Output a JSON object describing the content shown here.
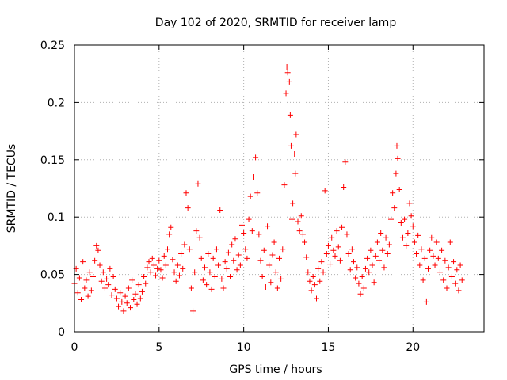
{
  "chart_data": {
    "type": "scatter",
    "title": "Day 102 of 2020, SRMTID for receiver lamp",
    "xlabel": "GPS time / hours",
    "ylabel": "SRMTID / TECUs",
    "xlim": [
      0,
      24.2
    ],
    "ylim": [
      0,
      0.25
    ],
    "x_ticks": [
      0,
      5,
      10,
      15,
      20
    ],
    "x_tick_labels": [
      "0",
      "5",
      "10",
      "15",
      "20"
    ],
    "y_ticks": [
      0,
      0.05,
      0.1,
      0.15,
      0.2,
      0.25
    ],
    "y_tick_labels": [
      "0",
      "0.05",
      "0.1",
      "0.15",
      "0.2",
      "0.25"
    ],
    "grid": true,
    "marker": "+",
    "color": "#ff0000",
    "series": [
      {
        "name": "SRMTID",
        "points": [
          [
            0.0,
            0.042
          ],
          [
            0.1,
            0.055
          ],
          [
            0.2,
            0.034
          ],
          [
            0.3,
            0.047
          ],
          [
            0.4,
            0.028
          ],
          [
            0.5,
            0.061
          ],
          [
            0.6,
            0.038
          ],
          [
            0.7,
            0.045
          ],
          [
            0.8,
            0.031
          ],
          [
            0.9,
            0.052
          ],
          [
            1.0,
            0.036
          ],
          [
            1.1,
            0.048
          ],
          [
            1.2,
            0.062
          ],
          [
            1.3,
            0.075
          ],
          [
            1.4,
            0.071
          ],
          [
            1.5,
            0.058
          ],
          [
            1.6,
            0.044
          ],
          [
            1.7,
            0.052
          ],
          [
            1.8,
            0.038
          ],
          [
            1.9,
            0.046
          ],
          [
            2.0,
            0.041
          ],
          [
            2.1,
            0.055
          ],
          [
            2.2,
            0.032
          ],
          [
            2.3,
            0.048
          ],
          [
            2.4,
            0.037
          ],
          [
            2.5,
            0.029
          ],
          [
            2.6,
            0.022
          ],
          [
            2.7,
            0.034
          ],
          [
            2.8,
            0.026
          ],
          [
            2.9,
            0.018
          ],
          [
            3.0,
            0.031
          ],
          [
            3.1,
            0.025
          ],
          [
            3.2,
            0.038
          ],
          [
            3.3,
            0.021
          ],
          [
            3.4,
            0.045
          ],
          [
            3.5,
            0.028
          ],
          [
            3.6,
            0.033
          ],
          [
            3.7,
            0.024
          ],
          [
            3.8,
            0.041
          ],
          [
            3.9,
            0.029
          ],
          [
            4.0,
            0.035
          ],
          [
            4.1,
            0.048
          ],
          [
            4.2,
            0.042
          ],
          [
            4.3,
            0.056
          ],
          [
            4.4,
            0.061
          ],
          [
            4.5,
            0.052
          ],
          [
            4.6,
            0.064
          ],
          [
            4.7,
            0.058
          ],
          [
            4.8,
            0.049
          ],
          [
            4.9,
            0.055
          ],
          [
            5.0,
            0.062
          ],
          [
            5.1,
            0.054
          ],
          [
            5.2,
            0.047
          ],
          [
            5.3,
            0.066
          ],
          [
            5.4,
            0.058
          ],
          [
            5.5,
            0.072
          ],
          [
            5.6,
            0.085
          ],
          [
            5.7,
            0.091
          ],
          [
            5.8,
            0.063
          ],
          [
            5.9,
            0.052
          ],
          [
            6.0,
            0.044
          ],
          [
            6.1,
            0.058
          ],
          [
            6.2,
            0.049
          ],
          [
            6.3,
            0.068
          ],
          [
            6.4,
            0.055
          ],
          [
            6.5,
            0.076
          ],
          [
            6.6,
            0.121
          ],
          [
            6.7,
            0.108
          ],
          [
            6.8,
            0.072
          ],
          [
            6.9,
            0.038
          ],
          [
            7.0,
            0.018
          ],
          [
            7.1,
            0.052
          ],
          [
            7.2,
            0.088
          ],
          [
            7.3,
            0.129
          ],
          [
            7.4,
            0.082
          ],
          [
            7.5,
            0.064
          ],
          [
            7.6,
            0.045
          ],
          [
            7.7,
            0.056
          ],
          [
            7.8,
            0.041
          ],
          [
            7.9,
            0.068
          ],
          [
            8.0,
            0.052
          ],
          [
            8.1,
            0.037
          ],
          [
            8.2,
            0.064
          ],
          [
            8.3,
            0.048
          ],
          [
            8.4,
            0.072
          ],
          [
            8.5,
            0.058
          ],
          [
            8.6,
            0.106
          ],
          [
            8.7,
            0.046
          ],
          [
            8.8,
            0.038
          ],
          [
            8.9,
            0.061
          ],
          [
            9.0,
            0.055
          ],
          [
            9.1,
            0.069
          ],
          [
            9.2,
            0.048
          ],
          [
            9.3,
            0.076
          ],
          [
            9.4,
            0.062
          ],
          [
            9.5,
            0.081
          ],
          [
            9.6,
            0.054
          ],
          [
            9.7,
            0.067
          ],
          [
            9.8,
            0.058
          ],
          [
            9.9,
            0.093
          ],
          [
            10.0,
            0.086
          ],
          [
            10.1,
            0.072
          ],
          [
            10.2,
            0.064
          ],
          [
            10.3,
            0.098
          ],
          [
            10.4,
            0.118
          ],
          [
            10.5,
            0.088
          ],
          [
            10.6,
            0.135
          ],
          [
            10.7,
            0.152
          ],
          [
            10.8,
            0.121
          ],
          [
            10.9,
            0.085
          ],
          [
            11.0,
            0.062
          ],
          [
            11.1,
            0.048
          ],
          [
            11.2,
            0.071
          ],
          [
            11.3,
            0.039
          ],
          [
            11.4,
            0.092
          ],
          [
            11.5,
            0.058
          ],
          [
            11.6,
            0.043
          ],
          [
            11.7,
            0.067
          ],
          [
            11.8,
            0.078
          ],
          [
            11.9,
            0.052
          ],
          [
            12.0,
            0.038
          ],
          [
            12.1,
            0.064
          ],
          [
            12.2,
            0.046
          ],
          [
            12.3,
            0.072
          ],
          [
            12.4,
            0.128
          ],
          [
            12.5,
            0.208
          ],
          [
            12.55,
            0.231
          ],
          [
            12.6,
            0.226
          ],
          [
            12.7,
            0.218
          ],
          [
            12.75,
            0.189
          ],
          [
            12.8,
            0.162
          ],
          [
            12.85,
            0.098
          ],
          [
            12.9,
            0.112
          ],
          [
            13.0,
            0.155
          ],
          [
            13.05,
            0.138
          ],
          [
            13.1,
            0.172
          ],
          [
            13.2,
            0.096
          ],
          [
            13.3,
            0.088
          ],
          [
            13.4,
            0.101
          ],
          [
            13.5,
            0.085
          ],
          [
            13.6,
            0.078
          ],
          [
            13.7,
            0.065
          ],
          [
            13.8,
            0.052
          ],
          [
            13.9,
            0.044
          ],
          [
            14.0,
            0.036
          ],
          [
            14.1,
            0.048
          ],
          [
            14.2,
            0.041
          ],
          [
            14.3,
            0.029
          ],
          [
            14.4,
            0.055
          ],
          [
            14.5,
            0.044
          ],
          [
            14.6,
            0.061
          ],
          [
            14.7,
            0.052
          ],
          [
            14.8,
            0.123
          ],
          [
            14.9,
            0.068
          ],
          [
            15.0,
            0.075
          ],
          [
            15.1,
            0.059
          ],
          [
            15.2,
            0.082
          ],
          [
            15.3,
            0.071
          ],
          [
            15.4,
            0.066
          ],
          [
            15.5,
            0.088
          ],
          [
            15.6,
            0.074
          ],
          [
            15.7,
            0.062
          ],
          [
            15.8,
            0.091
          ],
          [
            15.9,
            0.126
          ],
          [
            16.0,
            0.148
          ],
          [
            16.1,
            0.085
          ],
          [
            16.2,
            0.068
          ],
          [
            16.3,
            0.054
          ],
          [
            16.4,
            0.072
          ],
          [
            16.5,
            0.061
          ],
          [
            16.6,
            0.047
          ],
          [
            16.7,
            0.056
          ],
          [
            16.8,
            0.042
          ],
          [
            16.9,
            0.033
          ],
          [
            17.0,
            0.048
          ],
          [
            17.1,
            0.038
          ],
          [
            17.2,
            0.055
          ],
          [
            17.3,
            0.064
          ],
          [
            17.4,
            0.052
          ],
          [
            17.5,
            0.071
          ],
          [
            17.6,
            0.058
          ],
          [
            17.7,
            0.043
          ],
          [
            17.8,
            0.066
          ],
          [
            17.9,
            0.078
          ],
          [
            18.0,
            0.062
          ],
          [
            18.1,
            0.086
          ],
          [
            18.2,
            0.071
          ],
          [
            18.3,
            0.056
          ],
          [
            18.4,
            0.082
          ],
          [
            18.5,
            0.068
          ],
          [
            18.6,
            0.076
          ],
          [
            18.7,
            0.098
          ],
          [
            18.8,
            0.121
          ],
          [
            18.9,
            0.108
          ],
          [
            19.0,
            0.138
          ],
          [
            19.05,
            0.162
          ],
          [
            19.1,
            0.151
          ],
          [
            19.2,
            0.124
          ],
          [
            19.3,
            0.095
          ],
          [
            19.4,
            0.082
          ],
          [
            19.5,
            0.098
          ],
          [
            19.6,
            0.075
          ],
          [
            19.7,
            0.086
          ],
          [
            19.8,
            0.112
          ],
          [
            19.9,
            0.101
          ],
          [
            20.0,
            0.092
          ],
          [
            20.1,
            0.078
          ],
          [
            20.2,
            0.068
          ],
          [
            20.3,
            0.084
          ],
          [
            20.4,
            0.058
          ],
          [
            20.5,
            0.072
          ],
          [
            20.6,
            0.045
          ],
          [
            20.7,
            0.064
          ],
          [
            20.8,
            0.026
          ],
          [
            20.9,
            0.055
          ],
          [
            21.0,
            0.071
          ],
          [
            21.1,
            0.082
          ],
          [
            21.2,
            0.066
          ],
          [
            21.3,
            0.058
          ],
          [
            21.4,
            0.078
          ],
          [
            21.5,
            0.064
          ],
          [
            21.6,
            0.052
          ],
          [
            21.7,
            0.071
          ],
          [
            21.8,
            0.045
          ],
          [
            21.9,
            0.062
          ],
          [
            22.0,
            0.038
          ],
          [
            22.1,
            0.056
          ],
          [
            22.2,
            0.078
          ],
          [
            22.3,
            0.048
          ],
          [
            22.4,
            0.061
          ],
          [
            22.5,
            0.042
          ],
          [
            22.6,
            0.054
          ],
          [
            22.7,
            0.036
          ],
          [
            22.8,
            0.058
          ],
          [
            22.9,
            0.045
          ]
        ]
      }
    ]
  }
}
